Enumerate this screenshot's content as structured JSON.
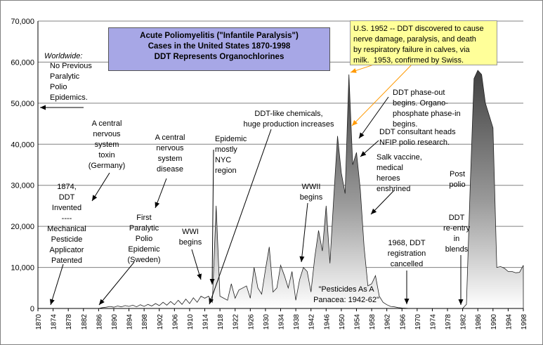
{
  "title": {
    "line1": "Acute Poliomyelitis (\"Infantile Paralysis\")",
    "line2": "Cases in the United States    1870-1998",
    "line3": "DDT Represents Organochlorines"
  },
  "note_box": "U.S. 1952 -- DDT discovered to cause\nnerve damage, paralysis, and death\nby respiratory failure in calves, via\nmilk.  1953, confirmed by Swiss.",
  "annotations": {
    "worldwide": "Worldwide:",
    "no_previous": "No Previous\nParalytic\nPolio\nEpidemics.",
    "ddt_invented": "1874,\nDDT\nInvented\n----\nMechanical\nPesticide\nApplicator\nPatented",
    "cns_toxin": "A central\nnervous\nsystem\ntoxin\n(Germany)",
    "cns_disease": "A central\nnervous\nsystem\ndisease",
    "first_epidemic": "First\nParalytic\nPolio\nEpidemic\n(Sweden)",
    "wwi": "WWI\nbegins",
    "epidemic_nyc": "Epidemic\nmostly\nNYC\nregion",
    "ddt_like": "DDT-like chemicals,\nhuge production increases",
    "wwii": "WWII\nbegins",
    "panacea": "\"Pesticides As A\nPanacea: 1942-62\"",
    "phase_out": "DDT phase-out\nbegins. Organo-\nphosphate phase-in\nbegins.",
    "consultant": "DDT consultant heads\nNFIP polio research.",
    "salk": "Salk vaccine,\nmedical\nheroes\nenshrined",
    "registration": "1968, DDT\nregistration\ncancelled",
    "post_polio": "Post\npolio",
    "reentry": "DDT\nre-entry\nin\nblends"
  },
  "chart_data": {
    "type": "area",
    "title": "Acute Poliomyelitis (\"Infantile Paralysis\") Cases in the United States 1870-1998",
    "xlim": [
      1870,
      1998
    ],
    "ylim": [
      0,
      70000
    ],
    "x_ticks": [
      1870,
      1874,
      1878,
      1882,
      1886,
      1890,
      1894,
      1898,
      1902,
      1906,
      1910,
      1914,
      1918,
      1922,
      1926,
      1930,
      1934,
      1938,
      1942,
      1946,
      1950,
      1954,
      1958,
      1962,
      1966,
      1970,
      1974,
      1978,
      1982,
      1986,
      1990,
      1994,
      1998
    ],
    "y_ticks": [
      0,
      10000,
      20000,
      30000,
      40000,
      50000,
      60000,
      70000
    ],
    "y_tick_labels": [
      "0",
      "10,000",
      "20,000",
      "30,000",
      "40,000",
      "50,000",
      "60,000",
      "70,000"
    ],
    "grid": true,
    "series": [
      {
        "name": "Polio",
        "x": [
          1886,
          1887,
          1888,
          1889,
          1890,
          1891,
          1892,
          1893,
          1894,
          1895,
          1896,
          1897,
          1898,
          1899,
          1900,
          1901,
          1902,
          1903,
          1904,
          1905,
          1906,
          1907,
          1908,
          1909,
          1910,
          1911,
          1912,
          1913,
          1914,
          1915,
          1916,
          1917,
          1918,
          1919,
          1920,
          1921,
          1922,
          1923,
          1924,
          1925,
          1926,
          1927,
          1928,
          1929,
          1930,
          1931,
          1932,
          1933,
          1934,
          1935,
          1936,
          1937,
          1938,
          1939,
          1940,
          1941,
          1942,
          1943,
          1944,
          1945,
          1946,
          1947,
          1948,
          1949,
          1950,
          1951,
          1952,
          1953,
          1954,
          1955,
          1956,
          1957,
          1958,
          1959,
          1960,
          1961,
          1962,
          1963,
          1964,
          1965,
          1966,
          1967,
          1968
        ],
        "y": [
          0,
          200,
          300,
          500,
          300,
          600,
          400,
          700,
          500,
          800,
          400,
          900,
          500,
          1000,
          600,
          1200,
          700,
          1500,
          800,
          1700,
          900,
          2000,
          1000,
          2300,
          1200,
          2600,
          1500,
          3000,
          2500,
          3000,
          1500,
          25000,
          3000,
          2500,
          2000,
          6000,
          2500,
          4500,
          5000,
          5500,
          2500,
          10000,
          5000,
          3500,
          9500,
          15000,
          4000,
          5000,
          10500,
          8000,
          5000,
          9000,
          2000,
          7000,
          10000,
          9000,
          4000,
          12500,
          19000,
          14000,
          25000,
          11000,
          27000,
          42000,
          33000,
          28000,
          57000,
          35000,
          38000,
          29000,
          15000,
          5500,
          6000,
          8000,
          3000,
          1500,
          900,
          500,
          400,
          200,
          100,
          50,
          0
        ]
      },
      {
        "name": "Post polio",
        "x": [
          1982,
          1983,
          1984,
          1985,
          1986,
          1987,
          1988,
          1989,
          1990,
          1991,
          1992,
          1993,
          1994,
          1995,
          1996,
          1997,
          1998
        ],
        "y": [
          0,
          1000,
          30000,
          56000,
          58000,
          57000,
          50000,
          47000,
          44000,
          10000,
          10200,
          9800,
          9000,
          9000,
          8700,
          8800,
          10500
        ]
      }
    ]
  }
}
